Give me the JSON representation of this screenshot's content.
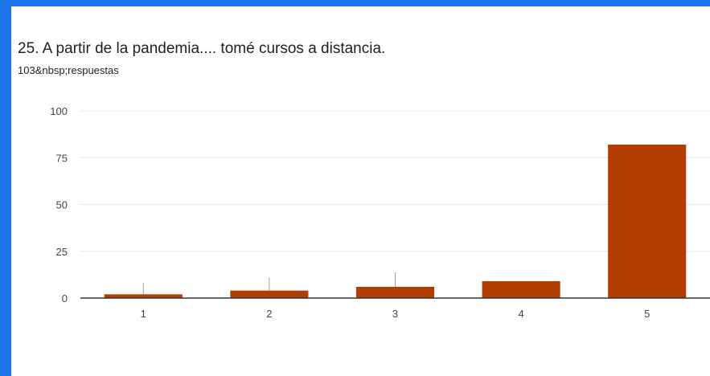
{
  "title": "25. A partir de la pandemia.... tomé cursos a distancia.",
  "subtitle": "103&nbsp;respuestas",
  "colors": {
    "frame": "#1a73e8",
    "bar": "#b33c00",
    "grid": "#e8e8e8",
    "axis": "#333333"
  },
  "chart_data": {
    "type": "bar",
    "title": "25. A partir de la pandemia.... tomé cursos a distancia.",
    "categories": [
      "1",
      "2",
      "3",
      "4",
      "5"
    ],
    "values": [
      2,
      4,
      6,
      9,
      82
    ],
    "ylim": [
      0,
      100
    ],
    "yticks": [
      0,
      25,
      50,
      75,
      100
    ],
    "grid": true,
    "legend": "none"
  }
}
